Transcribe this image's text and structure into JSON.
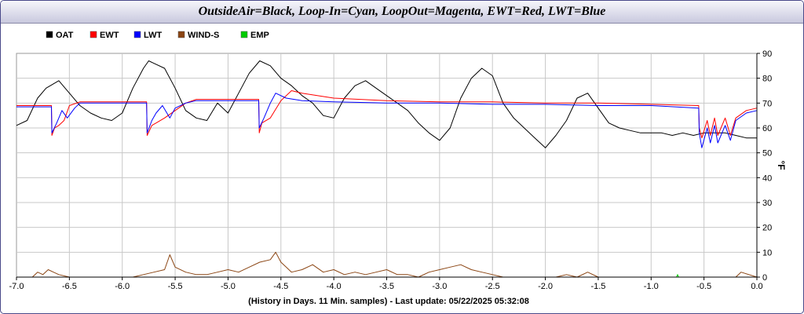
{
  "chart_data": {
    "type": "line",
    "title": "OutsideAir=Black, Loop-In=Cyan, LoopOut=Magenta,  EWT=Red, LWT=Blue",
    "xlabel": "(History in Days. 11 Min. samples) - Last update: 05/22/2025 05:32:08",
    "ylabel": "°F",
    "xlim": [
      -7.0,
      0.0
    ],
    "ylim": [
      0,
      90
    ],
    "x_ticks": [
      -7.0,
      -6.5,
      -6.0,
      -5.5,
      -5.0,
      -4.5,
      -4.0,
      -3.5,
      -3.0,
      -2.5,
      -2.0,
      -1.5,
      -1.0,
      -0.5,
      0.0
    ],
    "x_tick_labels": [
      "-7.0",
      "-6.5",
      "-6.0",
      "-5.5",
      "-5.0",
      "-4.5",
      "-4.0",
      "-3.5",
      "-3.0",
      "-2.5",
      "-2.0",
      "-1.5",
      "-1.0",
      "-0.5",
      "0.0"
    ],
    "y_ticks": [
      0,
      10,
      20,
      30,
      40,
      50,
      60,
      70,
      80,
      90
    ],
    "y_tick_labels": [
      "0",
      "10",
      "20",
      "30",
      "40",
      "50",
      "60",
      "70",
      "80",
      "90"
    ],
    "grid": true,
    "legend_position": "top-left",
    "series": [
      {
        "name": "OAT",
        "color": "#000000",
        "x": [
          -7.0,
          -6.9,
          -6.8,
          -6.72,
          -6.6,
          -6.5,
          -6.4,
          -6.3,
          -6.2,
          -6.1,
          -6.0,
          -5.9,
          -5.8,
          -5.75,
          -5.7,
          -5.6,
          -5.5,
          -5.4,
          -5.3,
          -5.2,
          -5.1,
          -5.0,
          -4.9,
          -4.8,
          -4.7,
          -4.6,
          -4.5,
          -4.4,
          -4.3,
          -4.2,
          -4.1,
          -4.0,
          -3.9,
          -3.8,
          -3.7,
          -3.6,
          -3.5,
          -3.4,
          -3.3,
          -3.2,
          -3.1,
          -3.0,
          -2.9,
          -2.8,
          -2.7,
          -2.6,
          -2.5,
          -2.4,
          -2.3,
          -2.2,
          -2.1,
          -2.0,
          -1.9,
          -1.8,
          -1.7,
          -1.6,
          -1.5,
          -1.4,
          -1.3,
          -1.2,
          -1.1,
          -1.0,
          -0.9,
          -0.8,
          -0.7,
          -0.6,
          -0.5,
          -0.4,
          -0.3,
          -0.2,
          -0.1,
          0.0
        ],
        "y": [
          61,
          63,
          72,
          76,
          79,
          74,
          69,
          66,
          64,
          63,
          66,
          76,
          84,
          87,
          86,
          84,
          76,
          67,
          64,
          63,
          70,
          66,
          74,
          82,
          87,
          85,
          80,
          77,
          73,
          70,
          65,
          64,
          72,
          77,
          79,
          76,
          73,
          70,
          67,
          62,
          58,
          55,
          60,
          72,
          80,
          84,
          81,
          70,
          64,
          60,
          56,
          52,
          57,
          63,
          72,
          74,
          68,
          62,
          60,
          59,
          58,
          58,
          58,
          57,
          58,
          57,
          58,
          58,
          58,
          57,
          56,
          56
        ]
      },
      {
        "name": "EWT",
        "color": "#ff0000",
        "x": [
          -7.0,
          -6.67,
          -6.665,
          -6.64,
          -6.6,
          -6.55,
          -6.5,
          -6.4,
          -5.77,
          -5.765,
          -5.72,
          -5.68,
          -5.6,
          -5.5,
          -5.4,
          -5.3,
          -4.71,
          -4.705,
          -4.68,
          -4.6,
          -4.5,
          -4.4,
          -4.3,
          -4.0,
          -3.5,
          -3.0,
          -2.5,
          -2.0,
          -1.5,
          -1.0,
          -0.55,
          -0.545,
          -0.52,
          -0.47,
          -0.44,
          -0.4,
          -0.37,
          -0.3,
          -0.25,
          -0.2,
          -0.1,
          0.0
        ],
        "y": [
          69,
          69,
          57,
          60,
          61,
          63,
          69,
          70.5,
          70.5,
          57,
          61,
          62,
          64,
          67,
          70,
          71.5,
          71.5,
          58,
          62,
          64,
          71,
          75,
          74,
          72,
          71,
          70.5,
          70.5,
          70,
          70,
          69.5,
          69,
          60,
          56,
          63,
          57,
          64,
          57,
          64,
          57,
          64,
          67,
          68
        ]
      },
      {
        "name": "LWT",
        "color": "#0000ff",
        "x": [
          -7.0,
          -6.67,
          -6.665,
          -6.62,
          -6.57,
          -6.52,
          -6.45,
          -6.4,
          -5.77,
          -5.765,
          -5.72,
          -5.68,
          -5.62,
          -5.55,
          -5.5,
          -5.4,
          -5.3,
          -4.71,
          -4.705,
          -4.66,
          -4.6,
          -4.55,
          -4.45,
          -4.3,
          -4.0,
          -3.5,
          -3.0,
          -2.5,
          -2.0,
          -1.5,
          -1.0,
          -0.55,
          -0.545,
          -0.52,
          -0.47,
          -0.44,
          -0.4,
          -0.37,
          -0.3,
          -0.25,
          -0.2,
          -0.1,
          0.0
        ],
        "y": [
          68.5,
          68.5,
          58,
          62,
          67,
          64,
          68,
          70,
          70,
          58,
          63,
          66,
          69,
          64,
          68,
          70,
          71,
          71,
          60,
          64,
          70,
          74,
          72,
          71,
          70.5,
          70,
          70,
          69.5,
          69.5,
          69,
          69,
          68,
          58,
          52,
          60,
          54,
          61,
          54,
          61,
          55,
          63,
          66,
          67
        ]
      },
      {
        "name": "WIND-S",
        "color": "#8b4513",
        "x": [
          -7.0,
          -6.85,
          -6.8,
          -6.75,
          -6.7,
          -6.65,
          -6.6,
          -6.5,
          -6.4,
          -6.2,
          -6.0,
          -5.9,
          -5.8,
          -5.7,
          -5.6,
          -5.55,
          -5.5,
          -5.4,
          -5.3,
          -5.2,
          -5.1,
          -5.0,
          -4.9,
          -4.8,
          -4.7,
          -4.6,
          -4.55,
          -4.5,
          -4.45,
          -4.4,
          -4.3,
          -4.2,
          -4.1,
          -4.0,
          -3.9,
          -3.8,
          -3.7,
          -3.6,
          -3.5,
          -3.4,
          -3.3,
          -3.2,
          -3.1,
          -3.0,
          -2.9,
          -2.8,
          -2.7,
          -2.6,
          -2.5,
          -2.4,
          -2.3,
          -2.2,
          -2.1,
          -2.0,
          -1.9,
          -1.8,
          -1.7,
          -1.6,
          -1.5,
          -1.4,
          -1.0,
          -0.75,
          -0.5,
          -0.3,
          -0.2,
          -0.15,
          0.0
        ],
        "y": [
          0,
          0,
          2,
          1,
          3,
          2,
          1,
          0,
          0,
          0,
          0,
          0,
          1,
          2,
          3,
          9,
          4,
          2,
          1,
          1,
          2,
          3,
          2,
          4,
          6,
          7,
          10,
          6,
          4,
          2,
          3,
          5,
          2,
          3,
          1,
          2,
          1,
          2,
          3,
          1,
          1,
          0,
          2,
          3,
          4,
          5,
          3,
          2,
          1,
          0,
          0,
          0,
          0,
          0,
          0,
          1,
          0,
          2,
          0,
          0,
          0,
          0,
          0,
          0,
          0,
          2,
          0
        ]
      },
      {
        "name": "EMP",
        "color": "#00cc00",
        "x": [
          -0.76,
          -0.75,
          -0.74
        ],
        "y": [
          0,
          1,
          0
        ]
      }
    ]
  }
}
